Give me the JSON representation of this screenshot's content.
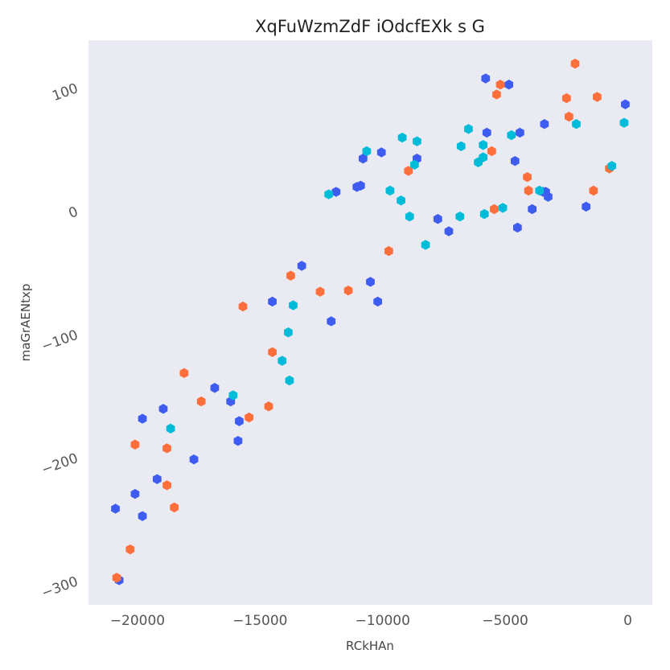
{
  "chart_data": {
    "type": "scatter",
    "title": "XqFuWzmZdF iOdcfEXk s G",
    "xlabel": "RCkHAn",
    "ylabel": "maGrAENtxp",
    "xlim": [
      -22000,
      1000
    ],
    "ylim": [
      -320,
      138
    ],
    "xticks": [
      -20000,
      -15000,
      -10000,
      -5000,
      0
    ],
    "xtick_labels": [
      "−20000",
      "−15000",
      "−10000",
      "−5000",
      "0"
    ],
    "yticks": [
      100,
      0,
      -100,
      -200,
      -300
    ],
    "ytick_labels": [
      "100",
      "0",
      "−100",
      "−200",
      "−300"
    ],
    "grid": false,
    "marker": "hexagon",
    "series": [
      {
        "color": "#3f5cf0",
        "points": [
          [
            -20900,
            -242
          ],
          [
            -20750,
            -300
          ],
          [
            -20100,
            -230
          ],
          [
            -19800,
            -248
          ],
          [
            -19800,
            -169
          ],
          [
            -19200,
            -218
          ],
          [
            -18950,
            -161
          ],
          [
            -17700,
            -202
          ],
          [
            -16850,
            -144
          ],
          [
            -16200,
            -155
          ],
          [
            -15850,
            -171
          ],
          [
            -15900,
            -187
          ],
          [
            -14500,
            -74
          ],
          [
            -13300,
            -45
          ],
          [
            -12100,
            -90
          ],
          [
            -11900,
            15
          ],
          [
            -11050,
            19
          ],
          [
            -10900,
            20
          ],
          [
            -10800,
            42
          ],
          [
            -10500,
            -58
          ],
          [
            -10200,
            -74
          ],
          [
            -10050,
            47
          ],
          [
            -8600,
            42
          ],
          [
            -7750,
            -7
          ],
          [
            -7300,
            -17
          ],
          [
            -5800,
            107
          ],
          [
            -5750,
            63
          ],
          [
            -4850,
            102
          ],
          [
            -4600,
            40
          ],
          [
            -4500,
            -14
          ],
          [
            -4400,
            63
          ],
          [
            -3900,
            1
          ],
          [
            -3450,
            15
          ],
          [
            -3350,
            15
          ],
          [
            -3250,
            11
          ],
          [
            -1700,
            3
          ],
          [
            -100,
            86
          ],
          [
            -3400,
            70
          ]
        ]
      },
      {
        "color": "#ff6f3c",
        "points": [
          [
            -20850,
            -298
          ],
          [
            -20300,
            -275
          ],
          [
            -20100,
            -190
          ],
          [
            -18800,
            -193
          ],
          [
            -18800,
            -223
          ],
          [
            -18500,
            -241
          ],
          [
            -18100,
            -132
          ],
          [
            -17400,
            -155
          ],
          [
            -15700,
            -78
          ],
          [
            -15450,
            -168
          ],
          [
            -14650,
            -159
          ],
          [
            -14500,
            -115
          ],
          [
            -13750,
            -53
          ],
          [
            -12550,
            -66
          ],
          [
            -11400,
            -65
          ],
          [
            -9750,
            -33
          ],
          [
            -8950,
            32
          ],
          [
            -5550,
            48
          ],
          [
            -5450,
            1
          ],
          [
            -5350,
            94
          ],
          [
            -5200,
            102
          ],
          [
            -4100,
            27
          ],
          [
            -4050,
            16
          ],
          [
            -2500,
            91
          ],
          [
            -2400,
            76
          ],
          [
            -2150,
            119
          ],
          [
            -1400,
            16
          ],
          [
            -1250,
            92
          ],
          [
            -750,
            34
          ]
        ]
      },
      {
        "color": "#00bcd8",
        "points": [
          [
            -16100,
            -150
          ],
          [
            -18650,
            -177
          ],
          [
            -14100,
            -122
          ],
          [
            -13850,
            -99
          ],
          [
            -13800,
            -138
          ],
          [
            -13650,
            -77
          ],
          [
            -12200,
            13
          ],
          [
            -10650,
            48
          ],
          [
            -9700,
            16
          ],
          [
            -9250,
            8
          ],
          [
            -9200,
            59
          ],
          [
            -8900,
            -5
          ],
          [
            -8700,
            37
          ],
          [
            -8600,
            56
          ],
          [
            -8250,
            -28
          ],
          [
            -6850,
            -5
          ],
          [
            -6800,
            52
          ],
          [
            -6500,
            66
          ],
          [
            -6100,
            39
          ],
          [
            -5900,
            43
          ],
          [
            -5900,
            53
          ],
          [
            -5850,
            -3
          ],
          [
            -5100,
            2
          ],
          [
            -4750,
            61
          ],
          [
            -3600,
            16
          ],
          [
            -2100,
            70
          ],
          [
            -650,
            36
          ],
          [
            -150,
            71
          ]
        ]
      }
    ]
  }
}
